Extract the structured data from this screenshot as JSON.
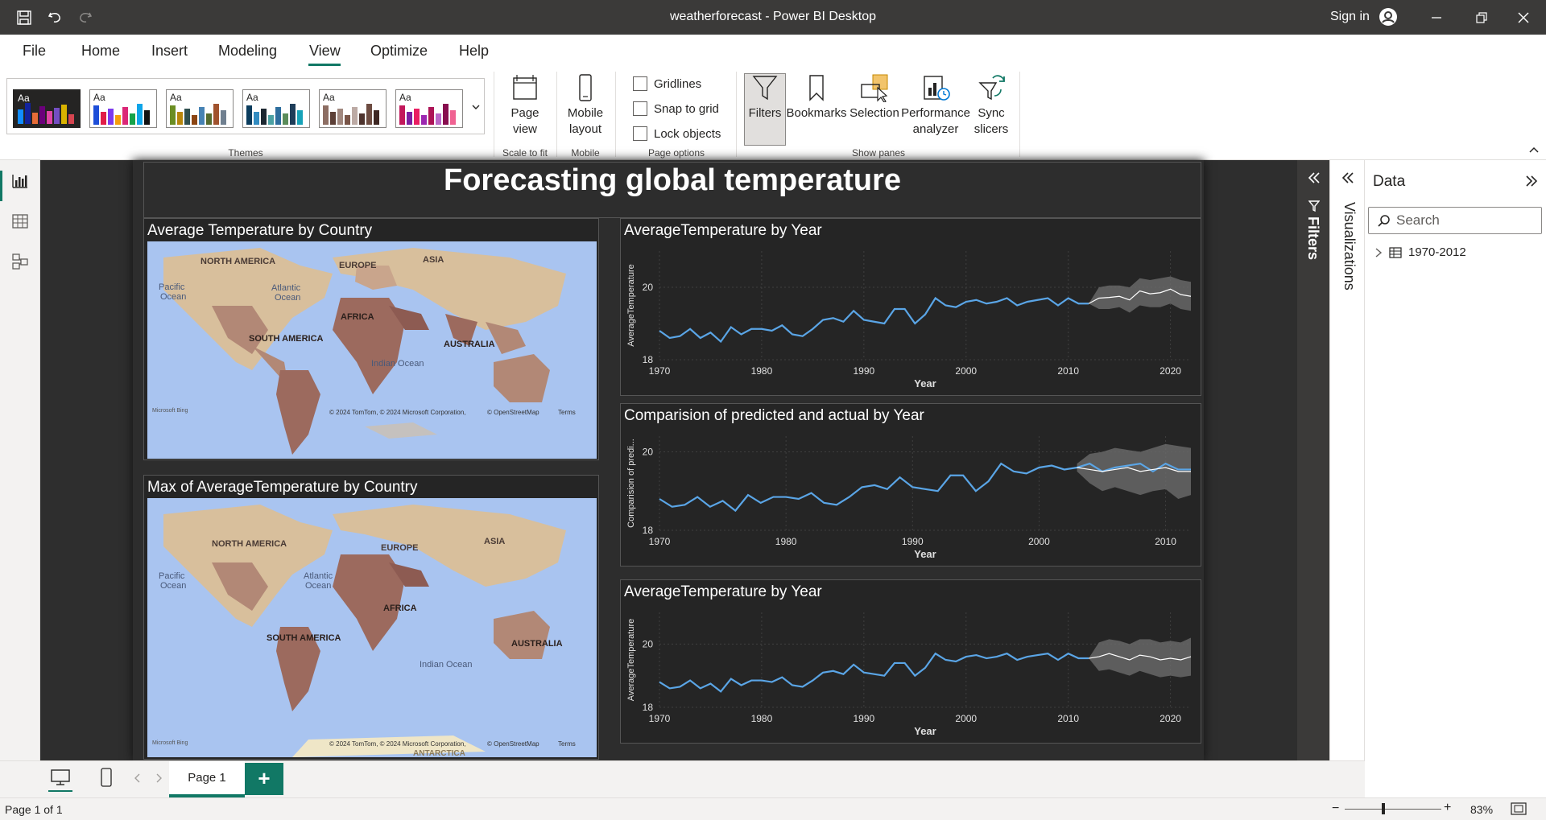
{
  "titlebar": {
    "title": "weatherforecast - Power BI Desktop",
    "signin": "Sign in"
  },
  "menu": [
    "File",
    "Home",
    "Insert",
    "Modeling",
    "View",
    "Optimize",
    "Help"
  ],
  "menu_active": "View",
  "ribbon": {
    "themes_label": "Themes",
    "theme_aa": "Aa",
    "page_view": "Page view",
    "scale_to_fit": "Scale to fit",
    "mobile_layout": "Mobile layout",
    "mobile_group": "Mobile",
    "gridlines": "Gridlines",
    "snap_to_grid": "Snap to grid",
    "lock_objects": "Lock objects",
    "page_options": "Page options",
    "filters": "Filters",
    "bookmarks": "Bookmarks",
    "selection": "Selection",
    "performance_analyzer": "Performance analyzer",
    "sync_slicers": "Sync slicers",
    "show_panes": "Show panes"
  },
  "report": {
    "title": "Forecasting global temperature",
    "map1_title": "Average Temperature by Country",
    "map2_title": "Max of AverageTemperature by Country",
    "map_labels": {
      "north_america": "NORTH AMERICA",
      "south_america": "SOUTH AMERICA",
      "europe": "EUROPE",
      "asia": "ASIA",
      "africa": "AFRICA",
      "australia": "AUSTRALIA",
      "pacific": "Pacific",
      "pacific2": "Ocean",
      "atlantic": "Atlantic",
      "atlantic2": "Ocean",
      "indian": "Indian Ocean",
      "antarctica": "ANTARCTICA",
      "bing": "Microsoft Bing",
      "copyright": "© 2024 TomTom, © 2024 Microsoft Corporation,",
      "osm": "© OpenStreetMap",
      "terms": "Terms"
    },
    "chart1_title": "AverageTemperature by Year",
    "chart2_title": "Comparision of predicted and actual by Year",
    "chart3_title": "AverageTemperature by Year"
  },
  "chart_data": [
    {
      "type": "line",
      "title": "AverageTemperature by Year",
      "xlabel": "Year",
      "ylabel": "AverageTemperature",
      "xlim": [
        1970,
        2022
      ],
      "ylim": [
        18,
        21
      ],
      "x_ticks": [
        1970,
        1980,
        1990,
        2000,
        2010,
        2020
      ],
      "y_ticks": [
        18,
        20
      ],
      "series": [
        {
          "x": [
            1970,
            1971,
            1972,
            1973,
            1974,
            1975,
            1976,
            1977,
            1978,
            1979,
            1980,
            1981,
            1982,
            1983,
            1984,
            1985,
            1986,
            1987,
            1988,
            1989,
            1990,
            1991,
            1992,
            1993,
            1994,
            1995,
            1996,
            1997,
            1998,
            1999,
            2000,
            2001,
            2002,
            2003,
            2004,
            2005,
            2006,
            2007,
            2008,
            2009,
            2010,
            2011,
            2012
          ],
          "values": [
            18.8,
            18.6,
            18.65,
            18.85,
            18.6,
            18.75,
            18.5,
            18.9,
            18.7,
            18.85,
            18.85,
            18.8,
            18.95,
            18.7,
            18.65,
            18.85,
            19.1,
            19.15,
            19.05,
            19.35,
            19.1,
            19.05,
            19.0,
            19.4,
            19.4,
            19.0,
            19.25,
            19.7,
            19.5,
            19.45,
            19.6,
            19.65,
            19.55,
            19.6,
            19.7,
            19.5,
            19.6,
            19.65,
            19.7,
            19.5,
            19.7,
            19.55,
            19.55
          ]
        },
        {
          "x": [
            2012,
            2013,
            2014,
            2015,
            2016,
            2017,
            2018,
            2019,
            2020,
            2021,
            2022
          ],
          "values": [
            19.55,
            19.7,
            19.72,
            19.75,
            19.65,
            19.9,
            19.82,
            19.85,
            19.95,
            19.8,
            19.75
          ],
          "band_low": [
            19.55,
            19.4,
            19.4,
            19.45,
            19.3,
            19.5,
            19.45,
            19.45,
            19.55,
            19.4,
            19.35
          ],
          "band_high": [
            19.55,
            20.0,
            20.05,
            20.05,
            20.0,
            20.25,
            20.2,
            20.25,
            20.3,
            20.2,
            20.15
          ]
        }
      ]
    },
    {
      "type": "line",
      "title": "Comparision of predicted and actual by Year",
      "xlabel": "Year",
      "ylabel": "Comparision of predi...",
      "xlim": [
        1970,
        2012
      ],
      "ylim": [
        18,
        20.4
      ],
      "x_ticks": [
        1970,
        1980,
        1990,
        2000,
        2010
      ],
      "y_ticks": [
        18,
        20
      ],
      "series": [
        {
          "x": [
            1970,
            1971,
            1972,
            1973,
            1974,
            1975,
            1976,
            1977,
            1978,
            1979,
            1980,
            1981,
            1982,
            1983,
            1984,
            1985,
            1986,
            1987,
            1988,
            1989,
            1990,
            1991,
            1992,
            1993,
            1994,
            1995,
            1996,
            1997,
            1998,
            1999,
            2000,
            2001,
            2002,
            2003,
            2004,
            2005,
            2006,
            2007,
            2008,
            2009,
            2010,
            2011,
            2012
          ],
          "values": [
            18.8,
            18.6,
            18.65,
            18.85,
            18.6,
            18.75,
            18.5,
            18.9,
            18.7,
            18.85,
            18.85,
            18.8,
            18.95,
            18.7,
            18.65,
            18.85,
            19.1,
            19.15,
            19.05,
            19.35,
            19.1,
            19.05,
            19.0,
            19.4,
            19.4,
            19.0,
            19.25,
            19.7,
            19.5,
            19.45,
            19.6,
            19.65,
            19.55,
            19.6,
            19.7,
            19.5,
            19.6,
            19.65,
            19.7,
            19.5,
            19.7,
            19.55,
            19.55
          ]
        },
        {
          "x": [
            2003,
            2004,
            2005,
            2006,
            2007,
            2008,
            2009,
            2010,
            2011,
            2012
          ],
          "values": [
            19.6,
            19.55,
            19.5,
            19.55,
            19.6,
            19.5,
            19.55,
            19.6,
            19.5,
            19.5
          ],
          "band_low": [
            19.5,
            19.2,
            19.0,
            19.1,
            19.0,
            18.9,
            19.0,
            19.05,
            18.8,
            18.9
          ],
          "band_high": [
            19.7,
            19.95,
            20.0,
            20.1,
            20.05,
            20.0,
            20.1,
            20.2,
            20.15,
            20.1
          ]
        }
      ]
    },
    {
      "type": "line",
      "title": "AverageTemperature by Year",
      "xlabel": "Year",
      "ylabel": "AverageTemperature",
      "xlim": [
        1970,
        2022
      ],
      "ylim": [
        18,
        21
      ],
      "x_ticks": [
        1970,
        1980,
        1990,
        2000,
        2010,
        2020
      ],
      "y_ticks": [
        18,
        20
      ],
      "series": [
        {
          "x": [
            1970,
            1971,
            1972,
            1973,
            1974,
            1975,
            1976,
            1977,
            1978,
            1979,
            1980,
            1981,
            1982,
            1983,
            1984,
            1985,
            1986,
            1987,
            1988,
            1989,
            1990,
            1991,
            1992,
            1993,
            1994,
            1995,
            1996,
            1997,
            1998,
            1999,
            2000,
            2001,
            2002,
            2003,
            2004,
            2005,
            2006,
            2007,
            2008,
            2009,
            2010,
            2011,
            2012
          ],
          "values": [
            18.8,
            18.6,
            18.65,
            18.85,
            18.6,
            18.75,
            18.5,
            18.9,
            18.7,
            18.85,
            18.85,
            18.8,
            18.95,
            18.7,
            18.65,
            18.85,
            19.1,
            19.15,
            19.05,
            19.35,
            19.1,
            19.05,
            19.0,
            19.4,
            19.4,
            19.0,
            19.25,
            19.7,
            19.5,
            19.45,
            19.6,
            19.65,
            19.55,
            19.6,
            19.7,
            19.5,
            19.6,
            19.65,
            19.7,
            19.5,
            19.7,
            19.55,
            19.55
          ]
        },
        {
          "x": [
            2012,
            2013,
            2014,
            2015,
            2016,
            2017,
            2018,
            2019,
            2020,
            2021,
            2022
          ],
          "values": [
            19.55,
            19.6,
            19.7,
            19.6,
            19.5,
            19.65,
            19.6,
            19.5,
            19.55,
            19.5,
            19.6
          ],
          "band_low": [
            19.55,
            19.15,
            19.2,
            19.1,
            19.0,
            19.15,
            19.05,
            18.95,
            19.0,
            18.95,
            19.0
          ],
          "band_high": [
            19.55,
            20.05,
            20.15,
            20.1,
            20.0,
            20.15,
            20.15,
            20.05,
            20.1,
            20.05,
            20.2
          ]
        }
      ]
    }
  ],
  "colors": {
    "accent": "#117865",
    "line": "#5aa5e6",
    "forecast": "#ffffff",
    "band": "#6b6b6b",
    "ocean": "#a9c4f0",
    "land": "#d8bf9c",
    "hot": "#9c6a5e"
  },
  "panes": {
    "filters": "Filters",
    "visualizations": "Visualizations",
    "data": "Data",
    "search_placeholder": "Search",
    "table": "1970-2012"
  },
  "tabs": {
    "page1": "Page 1",
    "add": "+"
  },
  "status": {
    "page": "Page 1 of 1",
    "zoom": "83%"
  }
}
